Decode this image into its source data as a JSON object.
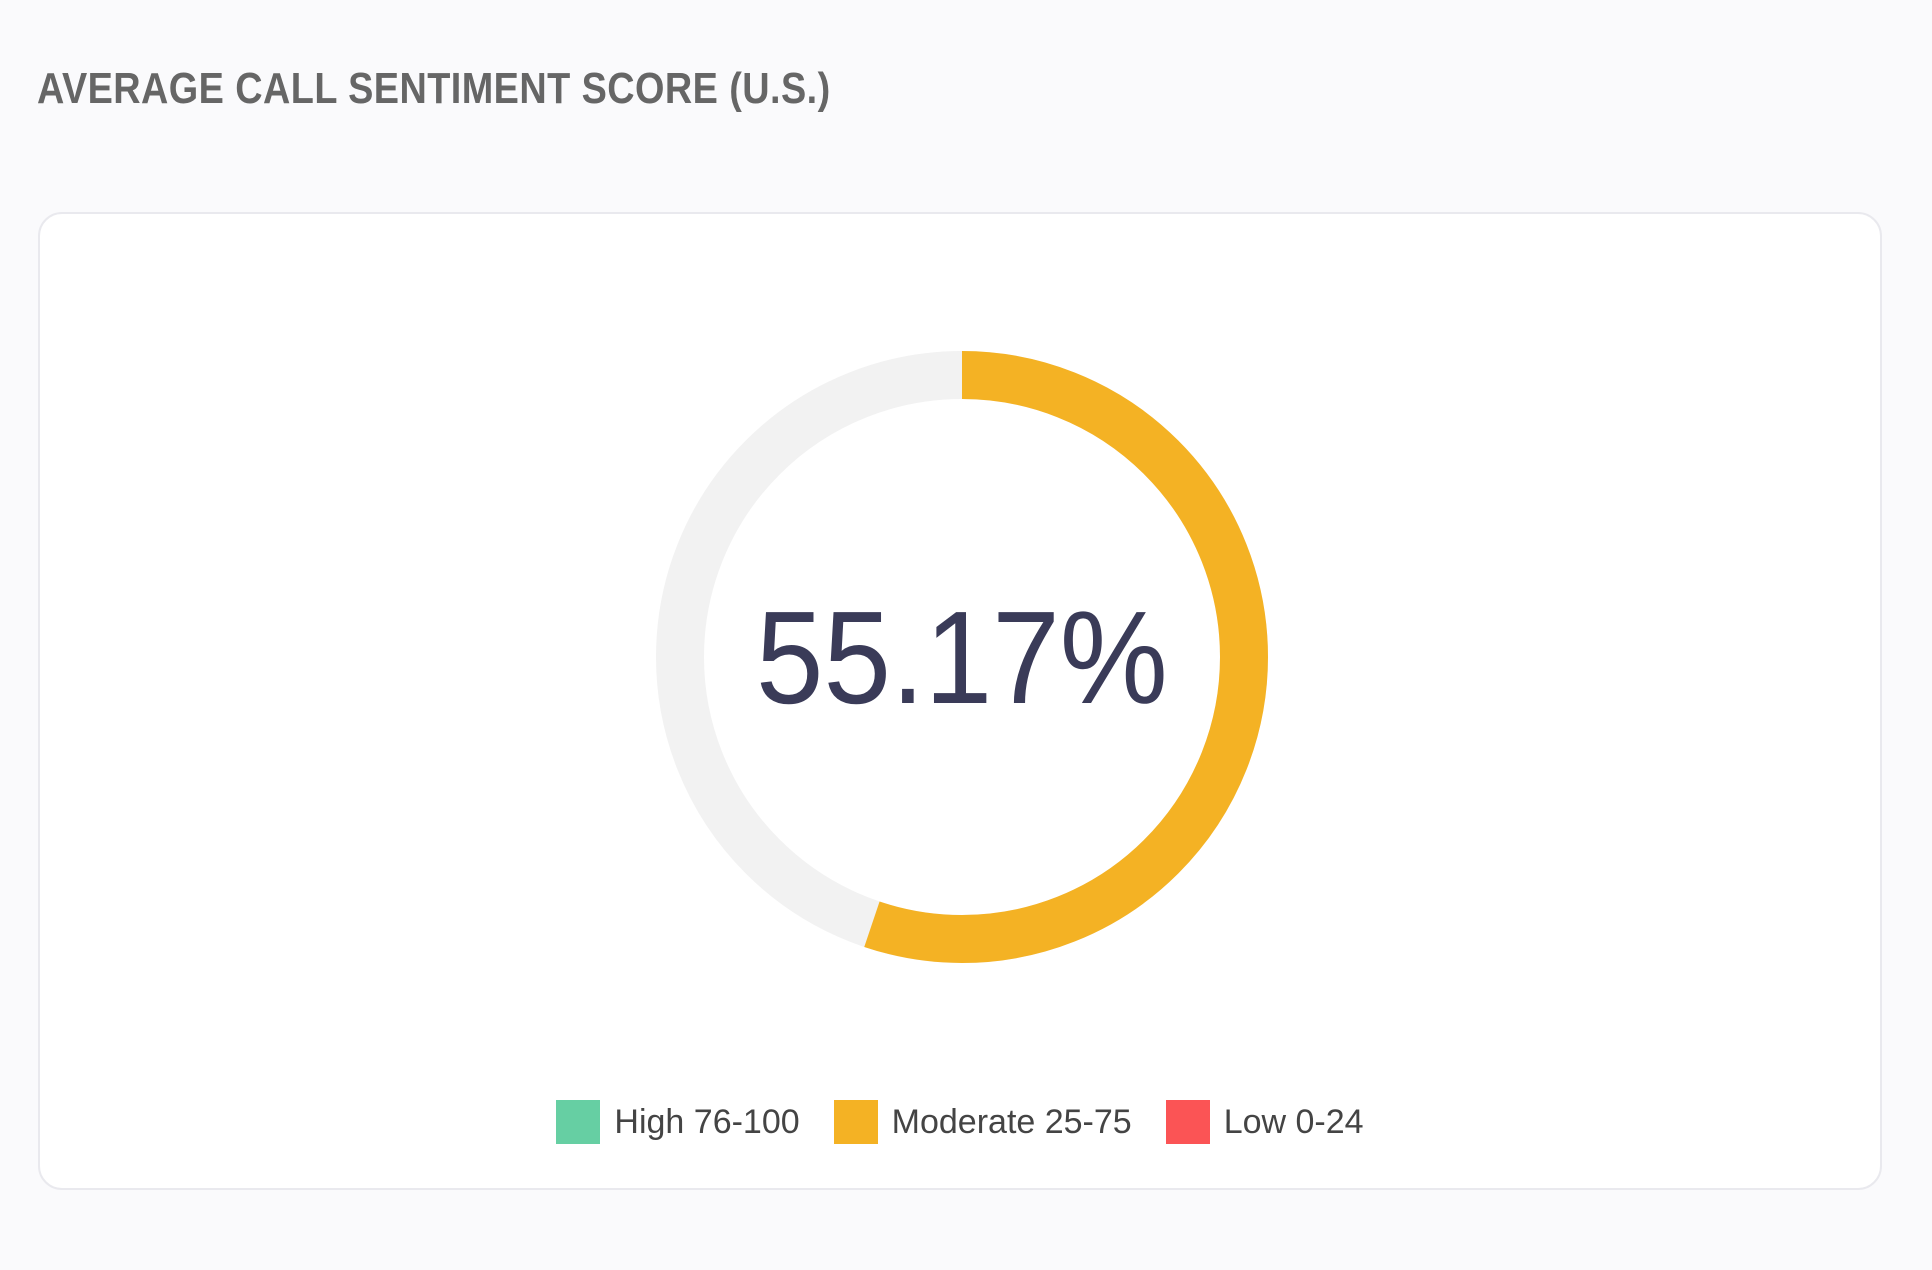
{
  "header": {
    "title": "AVERAGE CALL SENTIMENT SCORE (U.S.)"
  },
  "gauge": {
    "value_label": "55.17%"
  },
  "legend": [
    {
      "label": "High 76-100",
      "color": "#66cfa3"
    },
    {
      "label": "Moderate 25-75",
      "color": "#f4b224"
    },
    {
      "label": "Low 0-24",
      "color": "#fb5455"
    }
  ],
  "colors": {
    "fill": "#f4b224",
    "track": "#f2f2f2",
    "value_text": "#3a3b58"
  },
  "chart_data": {
    "type": "pie",
    "title": "AVERAGE CALL SENTIMENT SCORE (U.S.)",
    "value": 55.17,
    "max": 100,
    "value_label": "55.17%",
    "categories": [
      "High 76-100",
      "Moderate 25-75",
      "Low 0-24"
    ],
    "legend": "bottom"
  }
}
